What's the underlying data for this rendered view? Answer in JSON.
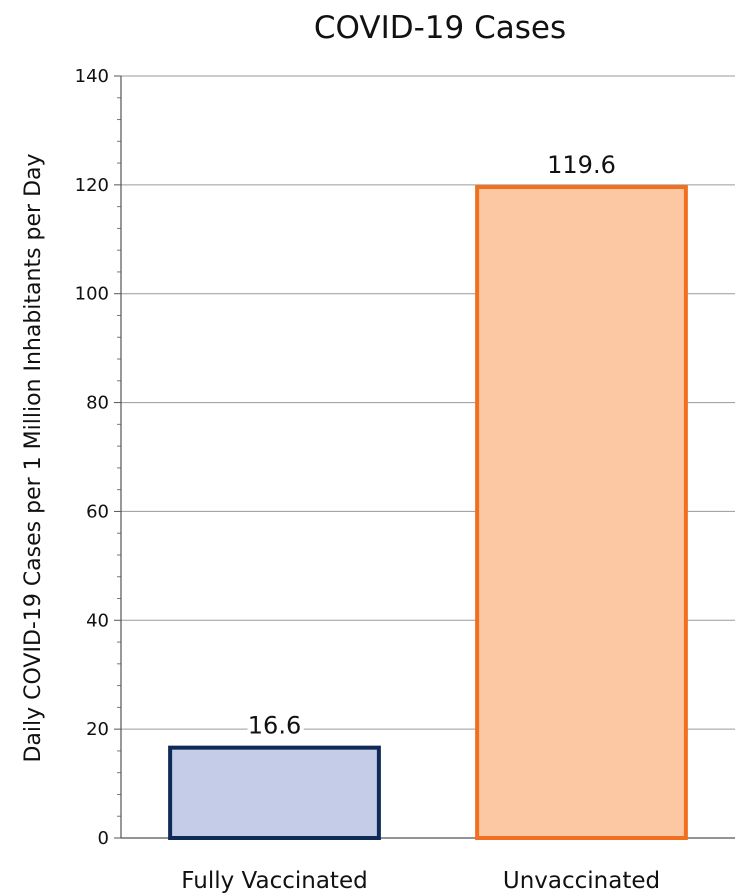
{
  "chart_data": {
    "type": "bar",
    "title": "COVID-19 Cases",
    "xlabel": "",
    "ylabel": "Daily COVID-19 Cases per 1 Million Inhabitants per Day",
    "categories": [
      "Fully Vaccinated",
      "Unvaccinated"
    ],
    "values": [
      16.6,
      119.6
    ],
    "value_labels": [
      "16.6",
      "119.6"
    ],
    "ylim": [
      0,
      140
    ],
    "yticks": [
      0,
      20,
      40,
      60,
      80,
      100,
      120,
      140
    ],
    "grid": true,
    "legend": "none",
    "bar_fill_colors": [
      "#c5cce8",
      "#fcc8a4"
    ],
    "bar_edge_colors": [
      "#0e2a55",
      "#f07020"
    ]
  }
}
